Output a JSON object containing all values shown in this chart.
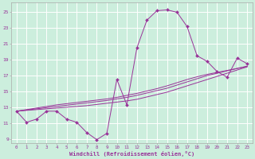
{
  "title": "",
  "xlabel": "Windchill (Refroidissement éolien,°C)",
  "ylabel": "",
  "bg_color": "#cceedd",
  "grid_color": "#ffffff",
  "line_color": "#993399",
  "marker_color": "#993399",
  "xlim": [
    -0.5,
    23.5
  ],
  "ylim": [
    8.5,
    26.2
  ],
  "xticks": [
    0,
    1,
    2,
    3,
    4,
    5,
    6,
    7,
    8,
    9,
    10,
    11,
    12,
    13,
    14,
    15,
    16,
    17,
    18,
    19,
    20,
    21,
    22,
    23
  ],
  "yticks": [
    9,
    11,
    13,
    15,
    17,
    19,
    21,
    23,
    25
  ],
  "series": {
    "main": [
      12.5,
      11.1,
      11.5,
      12.5,
      12.5,
      11.5,
      11.1,
      9.8,
      8.9,
      9.7,
      16.5,
      13.3,
      20.5,
      24.0,
      25.2,
      25.3,
      25.0,
      23.2,
      19.5,
      18.8,
      17.5,
      16.8,
      19.2,
      18.5
    ],
    "linear1": [
      12.5,
      12.6,
      12.7,
      12.8,
      12.9,
      13.0,
      13.1,
      13.2,
      13.35,
      13.5,
      13.65,
      13.8,
      14.0,
      14.3,
      14.6,
      14.9,
      15.3,
      15.7,
      16.1,
      16.5,
      16.9,
      17.3,
      17.7,
      18.1
    ],
    "linear2": [
      12.5,
      12.65,
      12.8,
      12.95,
      13.1,
      13.25,
      13.4,
      13.55,
      13.7,
      13.85,
      14.05,
      14.25,
      14.5,
      14.8,
      15.1,
      15.4,
      15.8,
      16.2,
      16.6,
      17.0,
      17.3,
      17.6,
      17.9,
      18.2
    ],
    "linear3": [
      12.5,
      12.7,
      12.9,
      13.1,
      13.3,
      13.45,
      13.6,
      13.75,
      13.9,
      14.05,
      14.25,
      14.5,
      14.75,
      15.05,
      15.35,
      15.7,
      16.1,
      16.5,
      16.85,
      17.15,
      17.4,
      17.65,
      17.9,
      18.15
    ]
  }
}
